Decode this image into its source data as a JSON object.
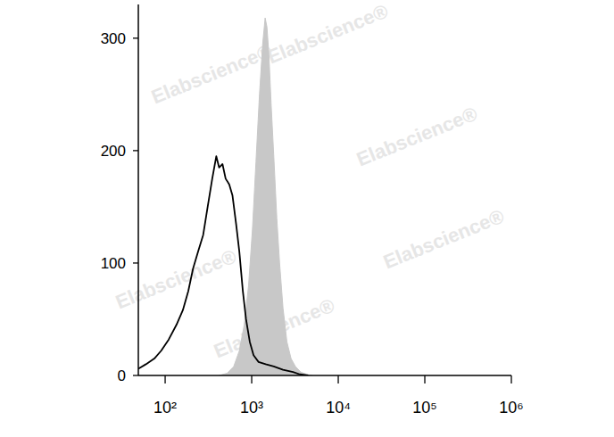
{
  "chart_data": {
    "type": "line",
    "annotations": [
      "Elabscience®"
    ],
    "log": "x",
    "grid": false,
    "xlim": [
      49,
      1000000
    ],
    "xticks": [
      {
        "value": 100,
        "label": "10²"
      },
      {
        "value": 1000,
        "label": "10³"
      },
      {
        "value": 10000,
        "label": "10⁴"
      },
      {
        "value": 100000,
        "label": "10⁵"
      },
      {
        "value": 1000000,
        "label": "10⁶"
      }
    ],
    "ylim": [
      0,
      330
    ],
    "yticks": [
      0,
      100,
      200,
      300
    ],
    "series": [
      {
        "type": "area",
        "color": "#c8c8c8",
        "x": [
          420,
          520,
          620,
          720,
          820,
          920,
          1020,
          1120,
          1230,
          1340,
          1430,
          1500,
          1580,
          1680,
          1800,
          1950,
          2100,
          2300,
          2550,
          2850,
          3200,
          3700,
          4300,
          5000
        ],
        "values": [
          0,
          2,
          8,
          22,
          45,
          80,
          130,
          190,
          250,
          295,
          318,
          310,
          285,
          240,
          195,
          140,
          100,
          60,
          30,
          15,
          8,
          3,
          1,
          0
        ]
      },
      {
        "type": "line",
        "color": "#000000",
        "x": [
          49,
          60,
          75,
          90,
          110,
          135,
          160,
          185,
          210,
          240,
          275,
          310,
          350,
          390,
          420,
          460,
          500,
          550,
          600,
          660,
          720,
          790,
          860,
          950,
          1050,
          1200,
          1450,
          1800,
          2300,
          3000,
          3600,
          4500
        ],
        "values": [
          6,
          10,
          15,
          22,
          32,
          45,
          58,
          75,
          95,
          110,
          125,
          150,
          175,
          195,
          185,
          188,
          175,
          170,
          160,
          135,
          110,
          75,
          50,
          30,
          18,
          12,
          10,
          8,
          5,
          3,
          1,
          0
        ]
      }
    ]
  }
}
